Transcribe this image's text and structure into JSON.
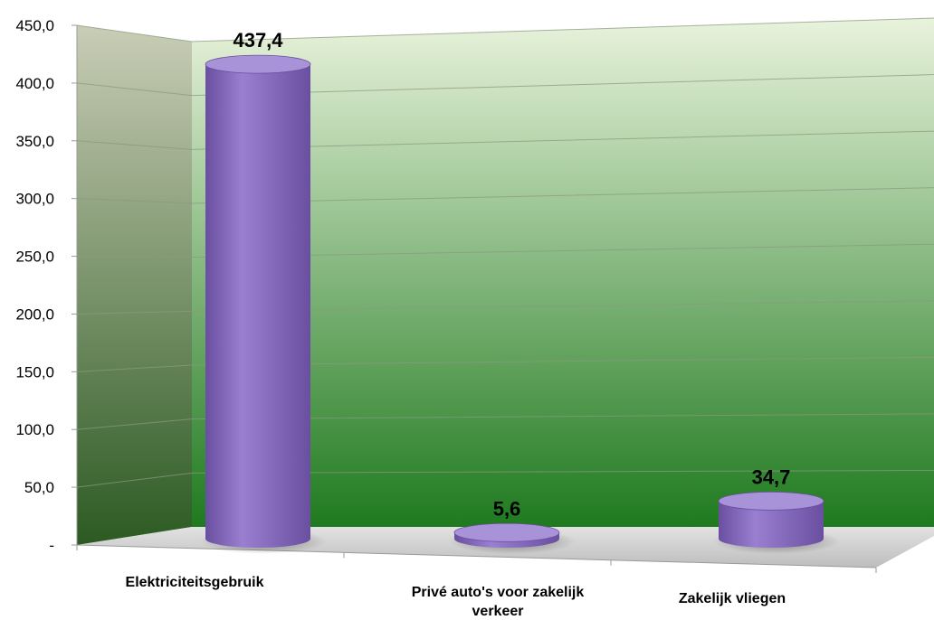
{
  "chart_data": {
    "type": "bar",
    "style": "3d-cylinder",
    "title": "",
    "xlabel": "",
    "ylabel": "",
    "categories": [
      "Elektriciteitsgebruik",
      "Privé auto's voor zakelijk verkeer",
      "Zakelijk vliegen"
    ],
    "series": [
      {
        "values": [
          437.4,
          5.6,
          34.7
        ],
        "labels": [
          "437,4",
          "5,6",
          "34,7"
        ]
      }
    ],
    "ylim": [
      0,
      450
    ],
    "yticks": [
      "-",
      "50,0",
      "100,0",
      "150,0",
      "200,0",
      "250,0",
      "300,0",
      "350,0",
      "400,0",
      "450,0"
    ],
    "grid": true,
    "legend": "none",
    "colors": {
      "bar": "#9a7fd0",
      "bar_dark": "#6a4fa0",
      "bar_top": "#a993d8",
      "wall_top": "#e9f3dc",
      "wall_bottom": "#1f7a1f",
      "side_wall_top": "#c9cdb6",
      "side_wall_bottom": "#2c5a22",
      "floor": "#cfcfcf"
    }
  }
}
